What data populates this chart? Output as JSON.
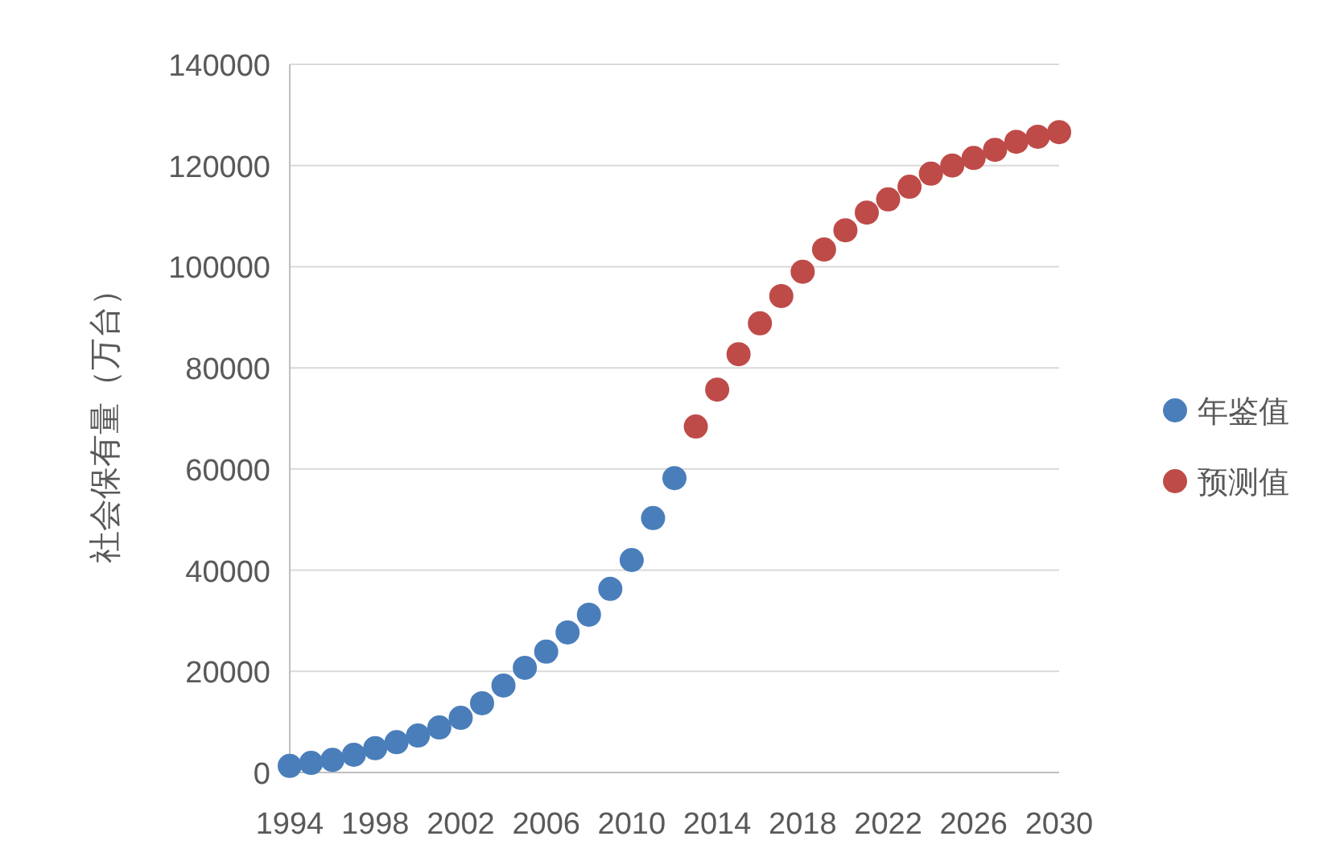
{
  "chart_data": {
    "type": "scatter",
    "ylabel": "社会保有量（万台）",
    "xlim": [
      1994,
      2030
    ],
    "xticks": [
      1994,
      1998,
      2002,
      2006,
      2010,
      2014,
      2018,
      2022,
      2026,
      2030
    ],
    "ylim": [
      0,
      140000
    ],
    "yticks": [
      0,
      20000,
      40000,
      60000,
      80000,
      100000,
      120000,
      140000
    ],
    "grid": "y",
    "legend": "right",
    "marker": "circle",
    "series": [
      {
        "name": "年鉴值",
        "color": "#4a7ebb",
        "x": [
          1994,
          1995,
          1996,
          1997,
          1998,
          1999,
          2000,
          2001,
          2002,
          2003,
          2004,
          2005,
          2006,
          2007,
          2008,
          2009,
          2010,
          2011,
          2012
        ],
        "values": [
          1300,
          1900,
          2500,
          3500,
          4800,
          6000,
          7300,
          8900,
          10800,
          13700,
          17200,
          20700,
          23900,
          27700,
          31200,
          36300,
          42000,
          50300,
          58200
        ]
      },
      {
        "name": "预测值",
        "color": "#be4b48",
        "x": [
          2013,
          2014,
          2015,
          2016,
          2017,
          2018,
          2019,
          2020,
          2021,
          2022,
          2023,
          2024,
          2025,
          2026,
          2027,
          2028,
          2029,
          2030
        ],
        "values": [
          68400,
          75700,
          82700,
          88800,
          94200,
          99000,
          103400,
          107200,
          110700,
          113300,
          115800,
          118400,
          120000,
          121500,
          123100,
          124700,
          125700,
          126600
        ]
      }
    ]
  }
}
